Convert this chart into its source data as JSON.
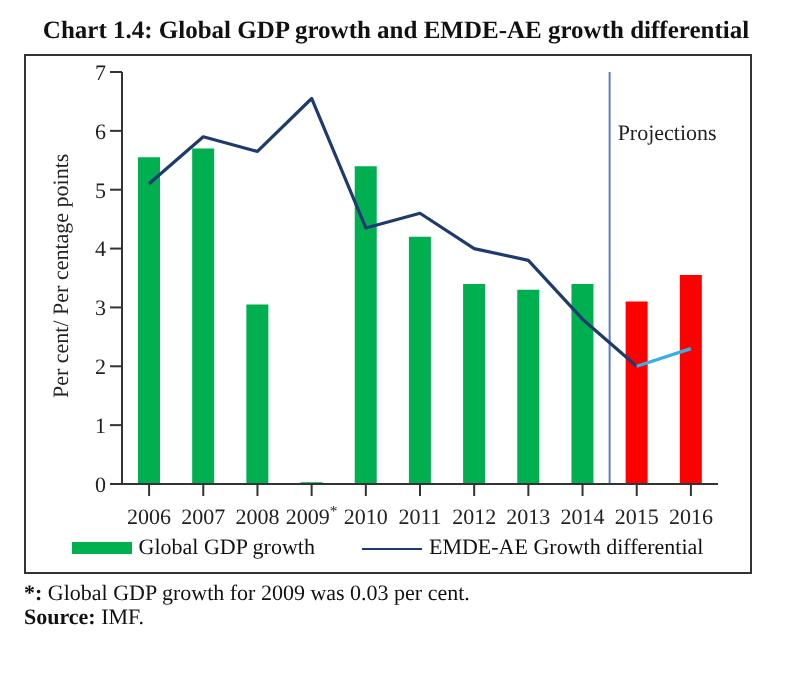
{
  "chart_data": {
    "type": "bar",
    "title": "Chart 1.4: Global GDP growth and EMDE-AE growth differential",
    "ylabel": "Per cent/ Per centage points",
    "categories": [
      "2006",
      "2007",
      "2008",
      "2009$^{*}$",
      "2010",
      "2011",
      "2012",
      "2013",
      "2014",
      "2015",
      "2016"
    ],
    "series": [
      {
        "name": "Global GDP growth",
        "color": "#00b050",
        "colors": [
          "#00b050",
          "#00b050",
          "#00b050",
          "#00b050",
          "#00b050",
          "#00b050",
          "#00b050",
          "#00b050",
          "#00b050",
          "#ff0000",
          "#ff0000"
        ],
        "values": [
          5.55,
          5.7,
          3.05,
          0.03,
          5.4,
          4.2,
          3.4,
          3.3,
          3.4,
          3.1,
          3.55
        ]
      },
      {
        "name": "EMDE-AE Growth differential",
        "type": "line",
        "color": "#1f3a6e",
        "values": [
          5.1,
          5.9,
          5.65,
          6.55,
          4.35,
          4.6,
          4.0,
          3.8,
          2.8,
          2.0,
          null
        ]
      },
      {
        "type": "line",
        "color": "#3aaee8",
        "values": [
          null,
          null,
          null,
          null,
          null,
          null,
          null,
          null,
          null,
          2.0,
          2.3
        ]
      }
    ],
    "ylim": [
      0,
      7
    ],
    "yticks": [
      0,
      1,
      2,
      3,
      4,
      5,
      6,
      7
    ],
    "legend": "bottom",
    "marker": "none",
    "line_style": "solid",
    "ref_lines": [
      {
        "axis": "x",
        "value": "2015",
        "label": "Projections",
        "color": "#5b7fbf"
      }
    ],
    "annotations": [
      "*: Global GDP growth for 2009 was 0.03 per cent.",
      "Source: IMF."
    ]
  }
}
